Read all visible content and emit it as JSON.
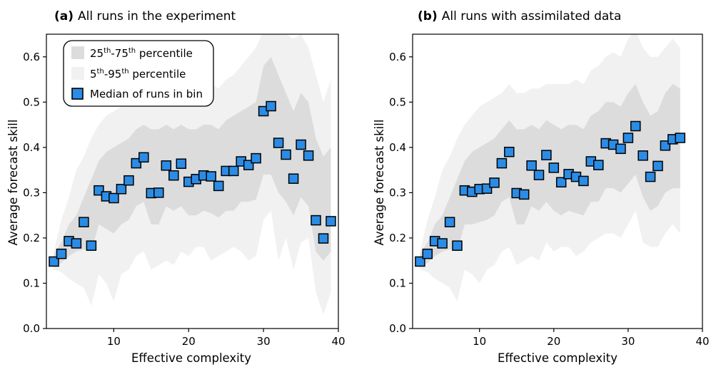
{
  "colors": {
    "band_50": "#dcdcdc",
    "band_90": "#f1f1f1",
    "marker_fill": "#2b8ce6",
    "marker_edge": "#000000"
  },
  "legend": {
    "iqr": {
      "main": "25",
      "sup1": "th",
      "dash": "-75",
      "sup2": "th",
      "rest": " percentile"
    },
    "p90": {
      "main": "5",
      "sup1": "th",
      "dash": "-95",
      "sup2": "th",
      "rest": " percentile"
    },
    "median": "Median of runs in bin"
  },
  "chart_data": [
    {
      "type": "scatter",
      "panel": "(a)",
      "title": "All runs in the experiment",
      "xlabel": "Effective complexity",
      "ylabel": "Average forecast skill",
      "xlim": [
        1,
        40
      ],
      "ylim": [
        0,
        0.65
      ],
      "xticks": [
        10,
        20,
        30,
        40
      ],
      "yticks": [
        0.0,
        0.1,
        0.2,
        0.3,
        0.4,
        0.5,
        0.6
      ],
      "legend_position": "top-left",
      "x": [
        2,
        3,
        4,
        5,
        6,
        7,
        8,
        9,
        10,
        11,
        12,
        13,
        14,
        15,
        16,
        17,
        18,
        19,
        20,
        21,
        22,
        23,
        24,
        25,
        26,
        27,
        28,
        29,
        30,
        31,
        32,
        33,
        34,
        35,
        36,
        37,
        38,
        39
      ],
      "median": [
        0.148,
        0.165,
        0.193,
        0.188,
        0.235,
        0.183,
        0.305,
        0.292,
        0.288,
        0.308,
        0.327,
        0.365,
        0.378,
        0.299,
        0.3,
        0.36,
        0.338,
        0.364,
        0.324,
        0.33,
        0.338,
        0.336,
        0.315,
        0.348,
        0.348,
        0.369,
        0.361,
        0.376,
        0.48,
        0.491,
        0.41,
        0.384,
        0.331,
        0.406,
        0.382,
        0.239,
        0.199,
        0.237
      ],
      "p25": [
        0.135,
        0.145,
        0.16,
        0.17,
        0.175,
        0.17,
        0.23,
        0.22,
        0.21,
        0.23,
        0.24,
        0.27,
        0.28,
        0.23,
        0.23,
        0.27,
        0.26,
        0.27,
        0.25,
        0.25,
        0.26,
        0.255,
        0.245,
        0.26,
        0.26,
        0.28,
        0.28,
        0.285,
        0.34,
        0.34,
        0.3,
        0.28,
        0.25,
        0.29,
        0.27,
        0.17,
        0.15,
        0.17
      ],
      "p75": [
        0.165,
        0.19,
        0.23,
        0.25,
        0.29,
        0.33,
        0.37,
        0.39,
        0.4,
        0.41,
        0.42,
        0.44,
        0.45,
        0.44,
        0.44,
        0.45,
        0.44,
        0.45,
        0.44,
        0.44,
        0.45,
        0.45,
        0.44,
        0.46,
        0.47,
        0.48,
        0.49,
        0.5,
        0.58,
        0.6,
        0.56,
        0.52,
        0.48,
        0.52,
        0.5,
        0.42,
        0.38,
        0.4
      ],
      "p5": [
        0.13,
        0.125,
        0.11,
        0.1,
        0.09,
        0.05,
        0.12,
        0.1,
        0.06,
        0.12,
        0.13,
        0.16,
        0.17,
        0.13,
        0.14,
        0.15,
        0.14,
        0.17,
        0.16,
        0.18,
        0.18,
        0.15,
        0.16,
        0.17,
        0.18,
        0.17,
        0.15,
        0.16,
        0.24,
        0.26,
        0.15,
        0.2,
        0.13,
        0.19,
        0.2,
        0.08,
        0.03,
        0.08
      ],
      "p95": [
        0.17,
        0.24,
        0.29,
        0.35,
        0.38,
        0.42,
        0.45,
        0.47,
        0.48,
        0.49,
        0.5,
        0.51,
        0.52,
        0.52,
        0.51,
        0.52,
        0.52,
        0.53,
        0.53,
        0.52,
        0.53,
        0.54,
        0.53,
        0.55,
        0.56,
        0.58,
        0.6,
        0.62,
        0.66,
        0.68,
        0.65,
        0.65,
        0.64,
        0.65,
        0.62,
        0.56,
        0.5,
        0.55
      ]
    },
    {
      "type": "scatter",
      "panel": "(b)",
      "title": "All runs with assimilated data",
      "xlabel": "Effective complexity",
      "ylabel": "Average forecast skill",
      "xlim": [
        1,
        40
      ],
      "ylim": [
        0,
        0.65
      ],
      "xticks": [
        10,
        20,
        30,
        40
      ],
      "yticks": [
        0.0,
        0.1,
        0.2,
        0.3,
        0.4,
        0.5,
        0.6
      ],
      "x": [
        2,
        3,
        4,
        5,
        6,
        7,
        8,
        9,
        10,
        11,
        12,
        13,
        14,
        15,
        16,
        17,
        18,
        19,
        20,
        21,
        22,
        23,
        24,
        25,
        26,
        27,
        28,
        29,
        30,
        31,
        32,
        33,
        34,
        35,
        36,
        37
      ],
      "median": [
        0.148,
        0.165,
        0.193,
        0.188,
        0.235,
        0.183,
        0.305,
        0.302,
        0.308,
        0.309,
        0.322,
        0.365,
        0.39,
        0.299,
        0.296,
        0.36,
        0.339,
        0.383,
        0.355,
        0.323,
        0.341,
        0.335,
        0.326,
        0.369,
        0.361,
        0.409,
        0.406,
        0.397,
        0.421,
        0.447,
        0.382,
        0.335,
        0.359,
        0.404,
        0.418,
        0.421
      ],
      "p25": [
        0.135,
        0.145,
        0.16,
        0.17,
        0.175,
        0.17,
        0.23,
        0.23,
        0.235,
        0.24,
        0.25,
        0.28,
        0.29,
        0.23,
        0.23,
        0.27,
        0.26,
        0.28,
        0.26,
        0.25,
        0.26,
        0.255,
        0.25,
        0.28,
        0.28,
        0.31,
        0.31,
        0.3,
        0.32,
        0.34,
        0.29,
        0.26,
        0.27,
        0.3,
        0.31,
        0.31
      ],
      "p75": [
        0.165,
        0.19,
        0.23,
        0.25,
        0.29,
        0.33,
        0.37,
        0.39,
        0.4,
        0.41,
        0.42,
        0.44,
        0.46,
        0.44,
        0.44,
        0.45,
        0.44,
        0.46,
        0.45,
        0.44,
        0.45,
        0.45,
        0.44,
        0.47,
        0.48,
        0.5,
        0.5,
        0.49,
        0.52,
        0.54,
        0.5,
        0.47,
        0.48,
        0.52,
        0.54,
        0.53
      ],
      "p5": [
        0.13,
        0.125,
        0.11,
        0.1,
        0.09,
        0.06,
        0.13,
        0.12,
        0.1,
        0.13,
        0.14,
        0.17,
        0.18,
        0.14,
        0.15,
        0.16,
        0.15,
        0.19,
        0.17,
        0.18,
        0.18,
        0.16,
        0.17,
        0.19,
        0.2,
        0.21,
        0.21,
        0.2,
        0.23,
        0.26,
        0.19,
        0.18,
        0.18,
        0.21,
        0.23,
        0.21
      ],
      "p95": [
        0.17,
        0.24,
        0.29,
        0.35,
        0.38,
        0.42,
        0.45,
        0.47,
        0.49,
        0.5,
        0.51,
        0.52,
        0.54,
        0.52,
        0.52,
        0.53,
        0.53,
        0.54,
        0.54,
        0.54,
        0.54,
        0.55,
        0.54,
        0.57,
        0.58,
        0.6,
        0.61,
        0.6,
        0.64,
        0.66,
        0.62,
        0.6,
        0.6,
        0.62,
        0.64,
        0.62
      ]
    }
  ]
}
